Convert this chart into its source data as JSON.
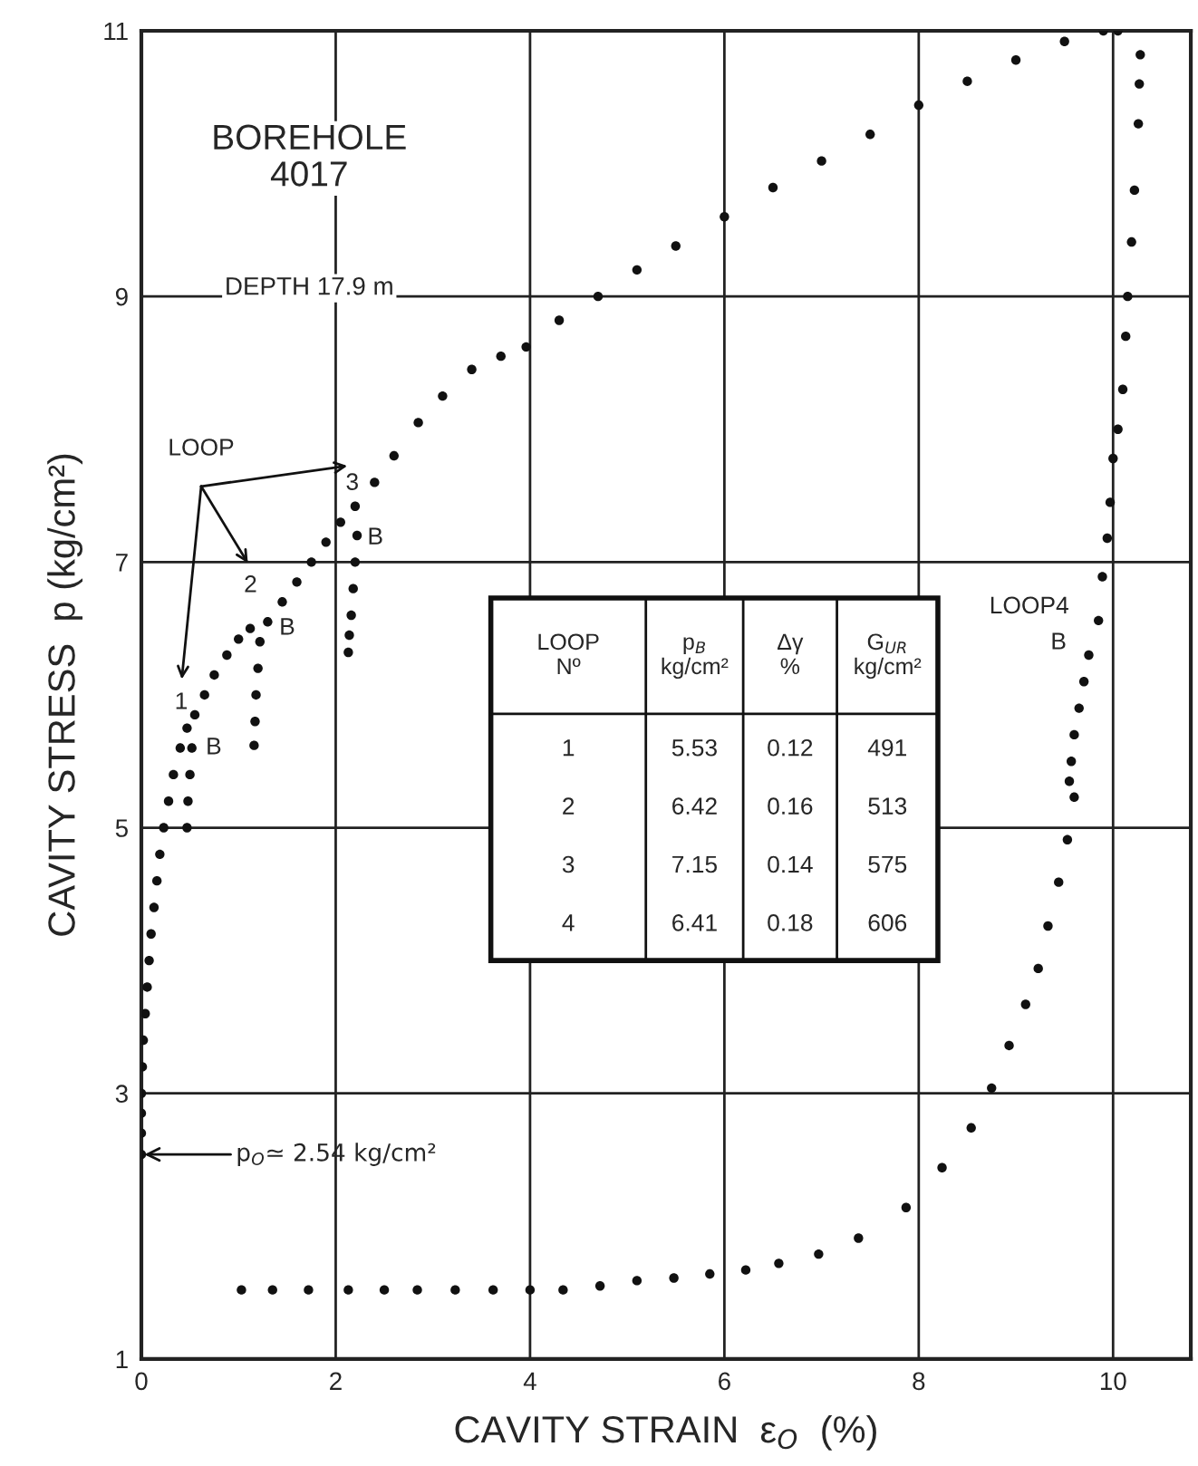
{
  "chart_data": {
    "type": "scatter",
    "title": "BOREHOLE\n4017",
    "subtitle": "DEPTH 17.9 m",
    "xlabel": "CAVITY STRAIN  ε$_{O}$  (%)",
    "ylabel": "CAVITY STRESS  p (kg/cm²)",
    "xlim": [
      0,
      10.8
    ],
    "ylim": [
      1,
      11
    ],
    "xticks": [
      0,
      2,
      4,
      6,
      8,
      10
    ],
    "yticks": [
      1,
      3,
      5,
      7,
      9,
      11
    ],
    "grid": true,
    "marker": "circle",
    "series": [
      {
        "color": "#111111",
        "x": [
          0,
          0,
          0,
          0,
          0.01,
          0.02,
          0.04,
          0.06,
          0.08,
          0.1,
          0.13,
          0.16,
          0.19,
          0.23,
          0.28,
          0.33,
          0.4,
          0.47,
          0.52,
          0.5,
          0.48,
          0.47,
          0.55,
          0.65,
          0.75,
          0.88,
          1.0,
          1.12,
          1.3,
          1.22,
          1.2,
          1.18,
          1.17,
          1.16,
          1.45,
          1.6,
          1.75,
          1.9,
          2.05,
          2.2,
          2.22,
          2.2,
          2.18,
          2.16,
          2.14,
          2.13,
          2.4,
          2.6,
          2.85,
          3.1,
          3.4,
          3.7,
          3.96,
          4.3,
          4.7,
          5.1,
          5.5,
          6.0,
          6.5,
          7.0,
          7.5,
          8.0,
          8.5,
          9.0,
          9.5,
          9.9,
          10.05,
          10.28,
          10.27,
          10.26,
          10.22,
          10.19,
          10.15,
          10.13,
          10.1,
          10.05,
          10.0,
          9.97,
          9.94,
          9.89,
          9.85,
          9.75,
          9.7,
          9.65,
          9.6,
          9.57,
          9.55,
          9.6,
          9.53,
          9.44,
          9.33,
          9.23,
          9.1,
          8.93,
          8.75,
          8.54,
          8.24,
          7.87,
          7.38,
          6.97,
          6.56,
          6.22,
          5.85,
          5.48,
          5.1,
          4.72,
          4.34,
          4.0,
          3.62,
          3.23,
          2.84,
          2.5,
          2.13,
          1.72,
          1.35,
          1.03
        ],
        "values": [
          2.54,
          2.7,
          2.85,
          3.0,
          3.2,
          3.4,
          3.6,
          3.8,
          4.0,
          4.2,
          4.4,
          4.6,
          4.8,
          5.0,
          5.2,
          5.4,
          5.6,
          5.75,
          5.6,
          5.4,
          5.2,
          5.0,
          5.85,
          6.0,
          6.15,
          6.3,
          6.42,
          6.5,
          6.55,
          6.4,
          6.2,
          6.0,
          5.8,
          5.62,
          6.7,
          6.85,
          7.0,
          7.15,
          7.3,
          7.42,
          7.2,
          7.0,
          6.8,
          6.6,
          6.45,
          6.32,
          7.6,
          7.8,
          8.05,
          8.25,
          8.45,
          8.55,
          8.62,
          8.82,
          9.0,
          9.2,
          9.38,
          9.6,
          9.82,
          10.02,
          10.22,
          10.44,
          10.62,
          10.78,
          10.92,
          11.0,
          11.0,
          10.82,
          10.6,
          10.3,
          9.8,
          9.41,
          9.0,
          8.7,
          8.3,
          8.0,
          7.78,
          7.45,
          7.18,
          6.89,
          6.56,
          6.3,
          6.1,
          5.9,
          5.7,
          5.5,
          5.35,
          5.23,
          4.91,
          4.59,
          4.26,
          3.94,
          3.67,
          3.36,
          3.04,
          2.74,
          2.44,
          2.14,
          1.91,
          1.79,
          1.72,
          1.67,
          1.64,
          1.61,
          1.59,
          1.55,
          1.52,
          1.52,
          1.52,
          1.52,
          1.52,
          1.52,
          1.52,
          1.52,
          1.52,
          1.52
        ]
      }
    ],
    "annotations": [
      "LOOP",
      "1",
      "2",
      "3",
      "B",
      "B",
      "B",
      "LOOP4",
      "B",
      "p$_{O}$≃ 2.54 kg/cm²",
      "LOOP\nNº\tp$_{B}$\nkg/cm²\tΔγ\n%\tG$_{UR}$\nkg/cm²",
      "1\t5.53\t0.12\t491",
      "2\t6.42\t0.16\t513",
      "3\t7.15\t0.14\t575",
      "4\t6.41\t0.18\t606"
    ]
  }
}
